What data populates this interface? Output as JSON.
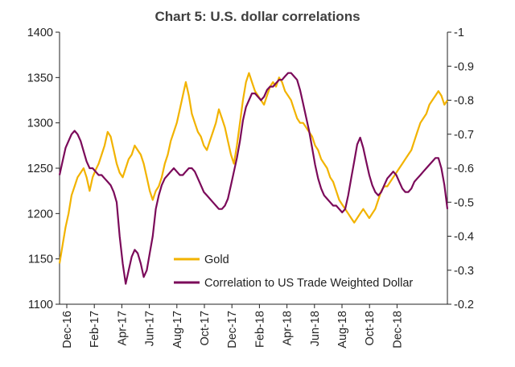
{
  "chart_data": {
    "type": "line",
    "title": "Chart 5: U.S. dollar correlations",
    "x_labels": [
      "Dec-16",
      "Feb-17",
      "Apr-17",
      "Jun-17",
      "Aug-17",
      "Oct-17",
      "Dec-17",
      "Feb-18",
      "Apr-18",
      "Jun-18",
      "Aug-18",
      "Oct-18",
      "Dec-18"
    ],
    "y_left": {
      "min": 1100,
      "max": 1400,
      "step": 50,
      "ticks": [
        "1100",
        "1150",
        "1200",
        "1250",
        "1300",
        "1350",
        "1400"
      ]
    },
    "y_right": {
      "min": -0.2,
      "max": -1.0,
      "ticks": [
        "-0.2",
        "-0.3",
        "-0.4",
        "-0.5",
        "-0.6",
        "-0.7",
        "-0.8",
        "-0.9",
        "-1"
      ]
    },
    "grid": false,
    "legend_position": "bottom-center",
    "colors": {
      "gold": "#f2b300",
      "correlation": "#7b0a5a"
    },
    "series": [
      {
        "name": "Gold",
        "axis": "left",
        "values": [
          1145,
          1165,
          1185,
          1200,
          1220,
          1230,
          1240,
          1245,
          1250,
          1240,
          1225,
          1240,
          1248,
          1255,
          1265,
          1275,
          1290,
          1285,
          1270,
          1255,
          1245,
          1240,
          1250,
          1260,
          1265,
          1275,
          1270,
          1265,
          1255,
          1240,
          1225,
          1215,
          1225,
          1230,
          1240,
          1255,
          1265,
          1280,
          1290,
          1300,
          1315,
          1330,
          1345,
          1330,
          1310,
          1300,
          1290,
          1285,
          1275,
          1270,
          1280,
          1290,
          1300,
          1315,
          1305,
          1295,
          1280,
          1265,
          1255,
          1275,
          1300,
          1325,
          1345,
          1355,
          1345,
          1335,
          1330,
          1325,
          1320,
          1330,
          1340,
          1345,
          1340,
          1350,
          1345,
          1335,
          1330,
          1325,
          1315,
          1305,
          1300,
          1300,
          1295,
          1290,
          1285,
          1275,
          1270,
          1260,
          1255,
          1250,
          1240,
          1235,
          1225,
          1215,
          1210,
          1205,
          1200,
          1195,
          1190,
          1195,
          1200,
          1205,
          1200,
          1195,
          1200,
          1205,
          1215,
          1225,
          1230,
          1230,
          1235,
          1240,
          1245,
          1250,
          1255,
          1260,
          1265,
          1270,
          1280,
          1290,
          1300,
          1305,
          1310,
          1320,
          1325,
          1330,
          1335,
          1330,
          1320,
          1325
        ]
      },
      {
        "name": "Correlation to US Trade Weighted Dollar",
        "axis": "right",
        "values": [
          -0.58,
          -0.62,
          -0.66,
          -0.68,
          -0.7,
          -0.71,
          -0.7,
          -0.68,
          -0.65,
          -0.62,
          -0.6,
          -0.6,
          -0.59,
          -0.58,
          -0.58,
          -0.57,
          -0.56,
          -0.55,
          -0.53,
          -0.5,
          -0.4,
          -0.32,
          -0.26,
          -0.3,
          -0.34,
          -0.36,
          -0.35,
          -0.32,
          -0.28,
          -0.3,
          -0.35,
          -0.4,
          -0.48,
          -0.52,
          -0.55,
          -0.57,
          -0.58,
          -0.59,
          -0.6,
          -0.59,
          -0.58,
          -0.58,
          -0.59,
          -0.6,
          -0.6,
          -0.59,
          -0.57,
          -0.55,
          -0.53,
          -0.52,
          -0.51,
          -0.5,
          -0.49,
          -0.48,
          -0.48,
          -0.49,
          -0.51,
          -0.55,
          -0.59,
          -0.63,
          -0.68,
          -0.74,
          -0.78,
          -0.8,
          -0.82,
          -0.82,
          -0.81,
          -0.8,
          -0.81,
          -0.83,
          -0.84,
          -0.84,
          -0.85,
          -0.86,
          -0.86,
          -0.87,
          -0.88,
          -0.88,
          -0.87,
          -0.86,
          -0.83,
          -0.79,
          -0.75,
          -0.71,
          -0.66,
          -0.61,
          -0.57,
          -0.54,
          -0.52,
          -0.51,
          -0.5,
          -0.49,
          -0.49,
          -0.48,
          -0.47,
          -0.48,
          -0.52,
          -0.57,
          -0.62,
          -0.67,
          -0.69,
          -0.66,
          -0.62,
          -0.58,
          -0.55,
          -0.53,
          -0.52,
          -0.53,
          -0.55,
          -0.57,
          -0.58,
          -0.59,
          -0.58,
          -0.56,
          -0.54,
          -0.53,
          -0.53,
          -0.54,
          -0.56,
          -0.57,
          -0.58,
          -0.59,
          -0.6,
          -0.61,
          -0.62,
          -0.63,
          -0.63,
          -0.6,
          -0.55,
          -0.48
        ]
      }
    ]
  }
}
